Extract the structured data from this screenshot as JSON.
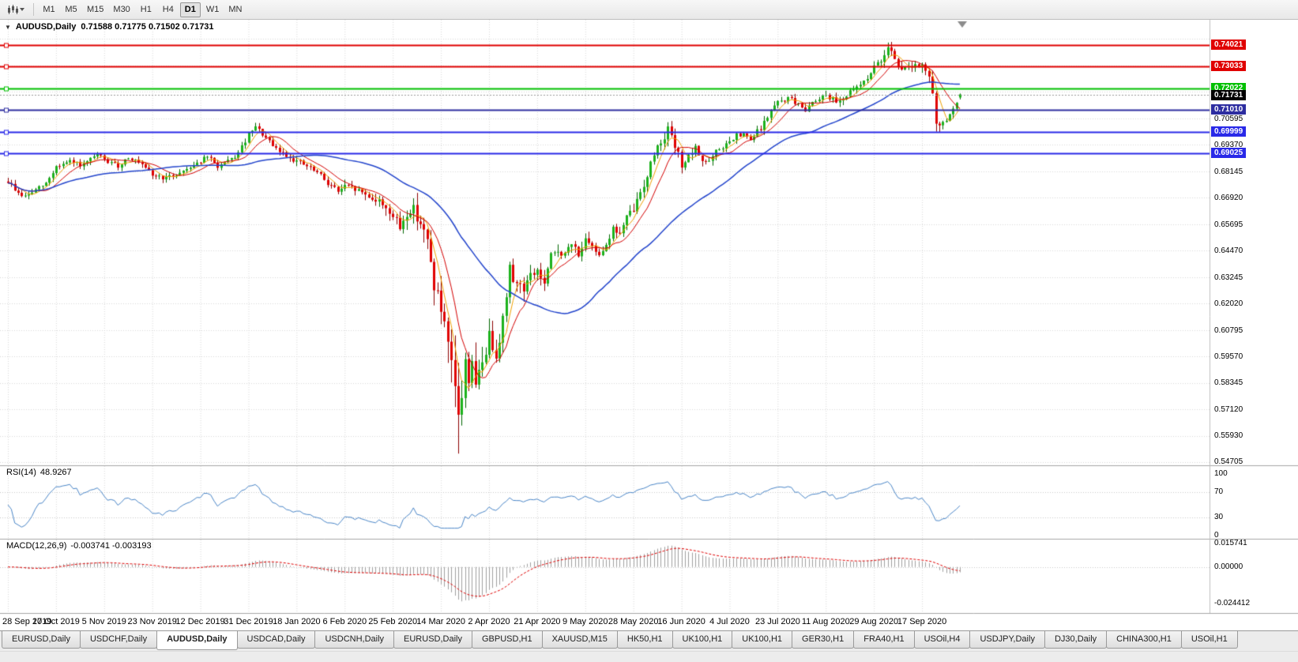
{
  "toolbar": {
    "timeframes": [
      "M1",
      "M5",
      "M15",
      "M30",
      "H1",
      "H4",
      "D1",
      "W1",
      "MN"
    ],
    "selected_timeframe": "D1",
    "chart_type_icon": "candlestick-chart-icon"
  },
  "chart_data": {
    "type": "candlestick",
    "symbol": "AUDUSD",
    "period": "Daily",
    "title": "AUDUSD,Daily",
    "collapse_arrow": "▼",
    "ohlc_text": "0.71588 0.71775 0.71502 0.71731",
    "ohlc": {
      "open": 0.71588,
      "high": 0.71775,
      "low": 0.71502,
      "close": 0.71731
    },
    "current_price": {
      "value": 0.71731,
      "label": "0.71731",
      "badge_color": "#000000"
    },
    "y_axis": {
      "ticks": [
        0.70595,
        0.6937,
        0.68145,
        0.6692,
        0.65695,
        0.6447,
        0.63245,
        0.6202,
        0.60795,
        0.5957,
        0.58345,
        0.5712,
        0.5593,
        0.54705
      ],
      "tick_labels": [
        "0.70595",
        "0.69370",
        "0.68145",
        "0.66920",
        "0.65695",
        "0.64470",
        "0.63245",
        "0.62020",
        "0.60795",
        "0.59570",
        "0.58345",
        "0.57120",
        "0.55930",
        "0.54705"
      ],
      "grid_step": 0.01225
    },
    "x_axis": {
      "labels": [
        {
          "text": "28 Sep 2019",
          "i": 0
        },
        {
          "text": "17 Oct 2019",
          "i": 14
        },
        {
          "text": "5 Nov 2019",
          "i": 28
        },
        {
          "text": "23 Nov 2019",
          "i": 42
        },
        {
          "text": "12 Dec 2019",
          "i": 56
        },
        {
          "text": "31 Dec 2019",
          "i": 70
        },
        {
          "text": "18 Jan 2020",
          "i": 84
        },
        {
          "text": "6 Feb 2020",
          "i": 98
        },
        {
          "text": "25 Feb 2020",
          "i": 112
        },
        {
          "text": "14 Mar 2020",
          "i": 126
        },
        {
          "text": "2 Apr 2020",
          "i": 140
        },
        {
          "text": "21 Apr 2020",
          "i": 154
        },
        {
          "text": "9 May 2020",
          "i": 168
        },
        {
          "text": "28 May 2020",
          "i": 182
        },
        {
          "text": "16 Jun 2020",
          "i": 196
        },
        {
          "text": "4 Jul 2020",
          "i": 210
        },
        {
          "text": "23 Jul 2020",
          "i": 224
        },
        {
          "text": "11 Aug 2020",
          "i": 238
        },
        {
          "text": "29 Aug 2020",
          "i": 252
        },
        {
          "text": "17 Sep 2020",
          "i": 266
        }
      ]
    },
    "horizontal_lines": [
      {
        "price": 0.74021,
        "label": "0.74021",
        "color": "#e00000"
      },
      {
        "price": 0.73033,
        "label": "0.73033",
        "color": "#e00000"
      },
      {
        "price": 0.72022,
        "label": "0.72022",
        "color": "#00c000"
      },
      {
        "price": 0.7101,
        "label": "0.71010",
        "color": "#2d2da0"
      },
      {
        "price": 0.69999,
        "label": "0.69999",
        "color": "#2929e8"
      },
      {
        "price": 0.69025,
        "label": "0.69025",
        "color": "#2929e8"
      }
    ],
    "candles": {
      "count": 278,
      "anchors": [
        [
          0,
          0.677
        ],
        [
          3,
          0.6715
        ],
        [
          5,
          0.67
        ],
        [
          8,
          0.673
        ],
        [
          11,
          0.676
        ],
        [
          14,
          0.684
        ],
        [
          18,
          0.686
        ],
        [
          22,
          0.6845
        ],
        [
          26,
          0.6895
        ],
        [
          29,
          0.686
        ],
        [
          32,
          0.684
        ],
        [
          35,
          0.6885
        ],
        [
          38,
          0.6855
        ],
        [
          42,
          0.68
        ],
        [
          46,
          0.6785
        ],
        [
          50,
          0.681
        ],
        [
          53,
          0.684
        ],
        [
          56,
          0.6865
        ],
        [
          58,
          0.6885
        ],
        [
          61,
          0.684
        ],
        [
          64,
          0.686
        ],
        [
          67,
          0.69
        ],
        [
          70,
          0.6985
        ],
        [
          72,
          0.702
        ],
        [
          74,
          0.699
        ],
        [
          77,
          0.693
        ],
        [
          80,
          0.69
        ],
        [
          84,
          0.6865
        ],
        [
          87,
          0.684
        ],
        [
          90,
          0.681
        ],
        [
          93,
          0.6765
        ],
        [
          96,
          0.6725
        ],
        [
          98,
          0.6745
        ],
        [
          101,
          0.6735
        ],
        [
          104,
          0.671
        ],
        [
          107,
          0.6685
        ],
        [
          110,
          0.6655
        ],
        [
          112,
          0.6605
        ],
        [
          114,
          0.6555
        ],
        [
          116,
          0.6625
        ],
        [
          118,
          0.664
        ],
        [
          120,
          0.6585
        ],
        [
          122,
          0.648
        ],
        [
          124,
          0.63
        ],
        [
          126,
          0.617
        ],
        [
          128,
          0.598
        ],
        [
          130,
          0.58
        ],
        [
          131,
          0.569
        ],
        [
          132,
          0.578
        ],
        [
          133,
          0.592
        ],
        [
          134,
          0.587
        ],
        [
          135,
          0.596
        ],
        [
          136,
          0.58
        ],
        [
          137,
          0.587
        ],
        [
          138,
          0.594
        ],
        [
          140,
          0.605
        ],
        [
          142,
          0.598
        ],
        [
          144,
          0.613
        ],
        [
          146,
          0.636
        ],
        [
          148,
          0.63
        ],
        [
          150,
          0.628
        ],
        [
          152,
          0.633
        ],
        [
          154,
          0.636
        ],
        [
          156,
          0.629
        ],
        [
          158,
          0.642
        ],
        [
          160,
          0.645
        ],
        [
          162,
          0.643
        ],
        [
          164,
          0.648
        ],
        [
          166,
          0.644
        ],
        [
          168,
          0.649
        ],
        [
          170,
          0.646
        ],
        [
          172,
          0.644
        ],
        [
          174,
          0.648
        ],
        [
          176,
          0.655
        ],
        [
          178,
          0.653
        ],
        [
          180,
          0.66
        ],
        [
          182,
          0.664
        ],
        [
          184,
          0.672
        ],
        [
          186,
          0.68
        ],
        [
          188,
          0.69
        ],
        [
          190,
          0.696
        ],
        [
          192,
          0.701
        ],
        [
          194,
          0.693
        ],
        [
          196,
          0.685
        ],
        [
          198,
          0.688
        ],
        [
          200,
          0.692
        ],
        [
          202,
          0.687
        ],
        [
          204,
          0.686
        ],
        [
          206,
          0.6905
        ],
        [
          208,
          0.693
        ],
        [
          210,
          0.695
        ],
        [
          212,
          0.698
        ],
        [
          214,
          0.6985
        ],
        [
          216,
          0.696
        ],
        [
          218,
          0.7
        ],
        [
          220,
          0.704
        ],
        [
          222,
          0.71
        ],
        [
          224,
          0.7135
        ],
        [
          226,
          0.715
        ],
        [
          228,
          0.7155
        ],
        [
          230,
          0.712
        ],
        [
          232,
          0.7105
        ],
        [
          234,
          0.714
        ],
        [
          236,
          0.716
        ],
        [
          238,
          0.7175
        ],
        [
          240,
          0.715
        ],
        [
          242,
          0.7145
        ],
        [
          244,
          0.717
        ],
        [
          246,
          0.719
        ],
        [
          248,
          0.722
        ],
        [
          250,
          0.7255
        ],
        [
          252,
          0.7295
        ],
        [
          254,
          0.733
        ],
        [
          256,
          0.7405
        ],
        [
          257,
          0.738
        ],
        [
          258,
          0.7345
        ],
        [
          259,
          0.731
        ],
        [
          260,
          0.728
        ],
        [
          261,
          0.73
        ],
        [
          262,
          0.7315
        ],
        [
          263,
          0.73
        ],
        [
          264,
          0.7305
        ],
        [
          265,
          0.729
        ],
        [
          266,
          0.73
        ],
        [
          267,
          0.7285
        ],
        [
          268,
          0.7255
        ],
        [
          269,
          0.716
        ],
        [
          270,
          0.7055
        ],
        [
          271,
          0.704
        ],
        [
          272,
          0.7035
        ],
        [
          273,
          0.706
        ],
        [
          274,
          0.7075
        ],
        [
          275,
          0.71
        ],
        [
          276,
          0.7125
        ],
        [
          277,
          0.7173
        ]
      ],
      "volatility": [
        [
          0,
          0.0045
        ],
        [
          40,
          0.004
        ],
        [
          70,
          0.0045
        ],
        [
          90,
          0.005
        ],
        [
          105,
          0.006
        ],
        [
          112,
          0.009
        ],
        [
          120,
          0.013
        ],
        [
          126,
          0.02
        ],
        [
          131,
          0.027
        ],
        [
          136,
          0.02
        ],
        [
          140,
          0.014
        ],
        [
          146,
          0.012
        ],
        [
          152,
          0.01
        ],
        [
          160,
          0.008
        ],
        [
          172,
          0.0065
        ],
        [
          182,
          0.0075
        ],
        [
          192,
          0.008
        ],
        [
          200,
          0.006
        ],
        [
          214,
          0.005
        ],
        [
          228,
          0.005
        ],
        [
          240,
          0.0048
        ],
        [
          250,
          0.0055
        ],
        [
          256,
          0.0075
        ],
        [
          262,
          0.006
        ],
        [
          268,
          0.007
        ],
        [
          270,
          0.009
        ],
        [
          273,
          0.006
        ],
        [
          277,
          0.004
        ]
      ],
      "spike": {
        "index": 131,
        "low": 0.551
      }
    },
    "moving_averages": [
      {
        "period": 5,
        "color": "#f0a000"
      },
      {
        "period": 10,
        "color": "#d40000"
      },
      {
        "period": 40,
        "color": "#2244cc"
      }
    ],
    "colors": {
      "up_fill": "#1cb21c",
      "up_stroke": "#006600",
      "down_fill": "#e00000",
      "down_stroke": "#8b0000",
      "grid": "#d9d9d9",
      "current_price_line": "#9a9a9a",
      "shift_marker": "#8c8c8c"
    },
    "rsi": {
      "label": "RSI(14)",
      "value": "48.9267",
      "period": 14,
      "levels": [
        100,
        70,
        30,
        0
      ],
      "level_labels": [
        "100",
        "70",
        "30",
        "0"
      ],
      "line_color": "#4a86c8"
    },
    "macd": {
      "label": "MACD(12,26,9)",
      "values": "-0.003741 -0.003193",
      "fast": 12,
      "slow": 26,
      "signal": 9,
      "axis_labels": [
        "0.015741",
        "0.00000",
        "-0.024412"
      ],
      "axis_values": [
        0.015741,
        0,
        -0.024412
      ],
      "hist_color": "#a0a0a0",
      "signal_color": "#e00000"
    }
  },
  "bottom_tabs": {
    "active_index": 2,
    "items": [
      "EURUSD,Daily",
      "USDCHF,Daily",
      "AUDUSD,Daily",
      "USDCAD,Daily",
      "USDCNH,Daily",
      "EURUSD,Daily",
      "GBPUSD,H1",
      "XAUUSD,M15",
      "HK50,H1",
      "UK100,H1",
      "UK100,H1",
      "GER30,H1",
      "FRA40,H1",
      "USOil,H4",
      "USDJPY,Daily",
      "DJ30,Daily",
      "CHINA300,H1",
      "USOil,H1"
    ]
  }
}
